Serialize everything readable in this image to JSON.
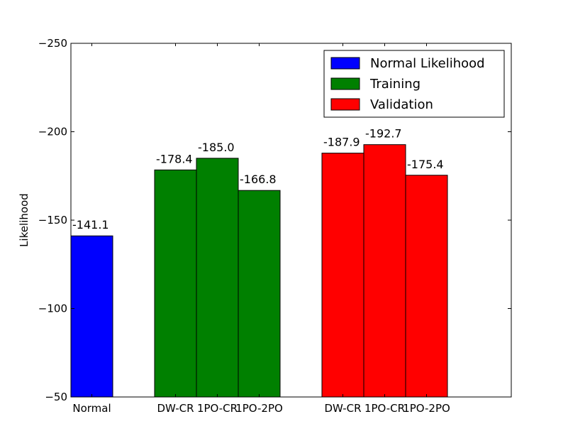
{
  "chart_data": {
    "type": "bar",
    "ylabel": "Likelihood",
    "ylim": [
      -50,
      -250
    ],
    "yticks": [
      -250,
      -200,
      -150,
      -100,
      -50
    ],
    "ytick_labels": [
      "−250",
      "−200",
      "−150",
      "−100",
      "−50"
    ],
    "categories": [
      "Normal",
      "DW-CR",
      "1PO-CR",
      "1PO-2PO",
      "DW-CR",
      "1PO-CR",
      "1PO-2PO"
    ],
    "bars": [
      {
        "category": "Normal",
        "series": "Normal Likelihood",
        "value": -141.1,
        "label": "-141.1"
      },
      {
        "category": "DW-CR",
        "series": "Training",
        "value": -178.4,
        "label": "-178.4"
      },
      {
        "category": "1PO-CR",
        "series": "Training",
        "value": -185.0,
        "label": "-185.0"
      },
      {
        "category": "1PO-2PO",
        "series": "Training",
        "value": -166.8,
        "label": "-166.8"
      },
      {
        "category": "DW-CR",
        "series": "Validation",
        "value": -187.9,
        "label": "-187.9"
      },
      {
        "category": "1PO-CR",
        "series": "Validation",
        "value": -192.7,
        "label": "-192.7"
      },
      {
        "category": "1PO-2PO",
        "series": "Validation",
        "value": -175.4,
        "label": "-175.4"
      }
    ],
    "series": [
      {
        "name": "Normal Likelihood",
        "color": "#0000ff"
      },
      {
        "name": "Training",
        "color": "#008000"
      },
      {
        "name": "Validation",
        "color": "#ff0000"
      }
    ],
    "legend": {
      "position": "top-right"
    },
    "grid": false
  }
}
